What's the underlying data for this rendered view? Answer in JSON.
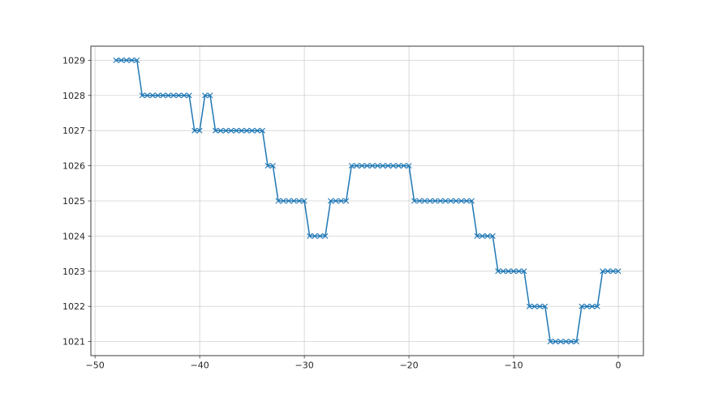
{
  "chart_data": {
    "type": "line",
    "title": "",
    "xlabel": "",
    "ylabel": "",
    "grid": true,
    "legend_position": "none",
    "xlim": [
      -50.4,
      2.4
    ],
    "ylim": [
      1020.6,
      1029.4
    ],
    "xticks": [
      -50,
      -40,
      -30,
      -20,
      -10,
      0
    ],
    "xtick_labels": [
      "−50",
      "−40",
      "−30",
      "−20",
      "−10",
      "0"
    ],
    "yticks": [
      1021,
      1022,
      1023,
      1024,
      1025,
      1026,
      1027,
      1028,
      1029
    ],
    "ytick_labels": [
      "1021",
      "1022",
      "1023",
      "1024",
      "1025",
      "1026",
      "1027",
      "1028",
      "1029"
    ],
    "series": [
      {
        "name": "series-1",
        "color": "#1f77b4",
        "marker": "x",
        "x": [
          -48,
          -47.5,
          -47,
          -46.5,
          -46,
          -45.5,
          -45,
          -44.5,
          -44,
          -43.5,
          -43,
          -42.5,
          -42,
          -41.5,
          -41,
          -40.5,
          -40,
          -39.5,
          -39,
          -38.5,
          -38,
          -37.5,
          -37,
          -36.5,
          -36,
          -35.5,
          -35,
          -34.5,
          -34,
          -33.5,
          -33,
          -32.5,
          -32,
          -31.5,
          -31,
          -30.5,
          -30,
          -29.5,
          -29,
          -28.5,
          -28,
          -27.5,
          -27,
          -26.5,
          -26,
          -25.5,
          -25,
          -24.5,
          -24,
          -23.5,
          -23,
          -22.5,
          -22,
          -21.5,
          -21,
          -20.5,
          -20,
          -19.5,
          -19,
          -18.5,
          -18,
          -17.5,
          -17,
          -16.5,
          -16,
          -15.5,
          -15,
          -14.5,
          -14,
          -13.5,
          -13,
          -12.5,
          -12,
          -11.5,
          -11,
          -10.5,
          -10,
          -9.5,
          -9,
          -8.5,
          -8,
          -7.5,
          -7,
          -6.5,
          -6,
          -5.5,
          -5,
          -4.5,
          -4,
          -3.5,
          -3,
          -2.5,
          -2,
          -1.5,
          -1,
          -0.5,
          0
        ],
        "y": [
          1029,
          1029,
          1029,
          1029,
          1029,
          1028,
          1028,
          1028,
          1028,
          1028,
          1028,
          1028,
          1028,
          1028,
          1028,
          1027,
          1027,
          1028,
          1028,
          1027,
          1027,
          1027,
          1027,
          1027,
          1027,
          1027,
          1027,
          1027,
          1027,
          1026,
          1026,
          1025,
          1025,
          1025,
          1025,
          1025,
          1025,
          1024,
          1024,
          1024,
          1024,
          1025,
          1025,
          1025,
          1025,
          1026,
          1026,
          1026,
          1026,
          1026,
          1026,
          1026,
          1026,
          1026,
          1026,
          1026,
          1026,
          1025,
          1025,
          1025,
          1025,
          1025,
          1025,
          1025,
          1025,
          1025,
          1025,
          1025,
          1025,
          1024,
          1024,
          1024,
          1024,
          1023,
          1023,
          1023,
          1023,
          1023,
          1023,
          1022,
          1022,
          1022,
          1022,
          1021,
          1021,
          1021,
          1021,
          1021,
          1021,
          1022,
          1022,
          1022,
          1022,
          1023,
          1023,
          1023,
          1023
        ]
      }
    ]
  },
  "style": {
    "line_color": "#1f77b4",
    "grid_color": "#d0d0d0",
    "spine_color": "#3a3a3a",
    "tick_color": "#3a3a3a",
    "tick_label_color": "#262626",
    "background": "#ffffff"
  }
}
